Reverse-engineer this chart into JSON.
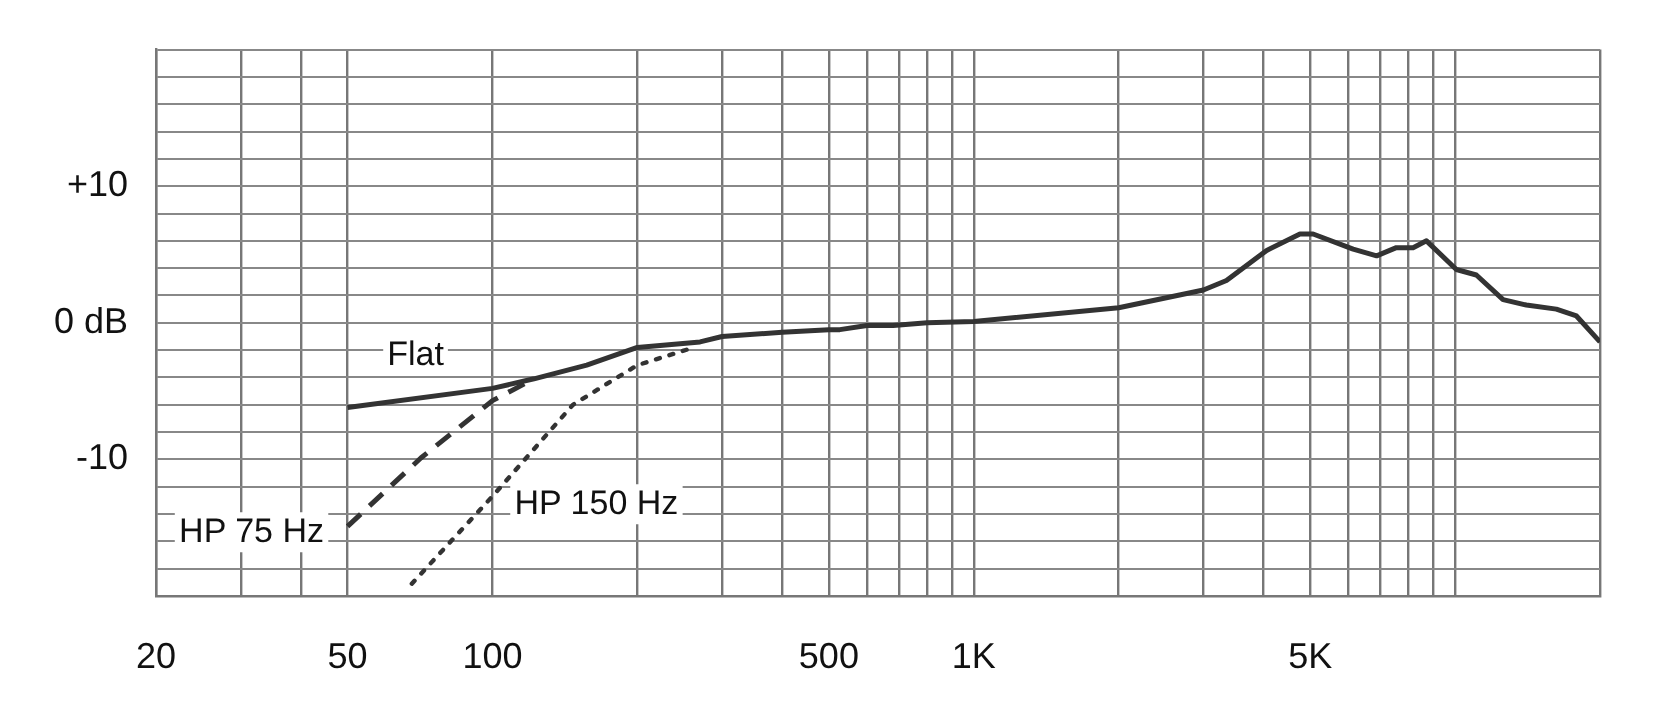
{
  "chart_data": {
    "type": "line",
    "log": "x",
    "grid": true,
    "legend": false,
    "marker": "none",
    "xlim": [
      20,
      20000
    ],
    "ylim": [
      -20,
      20
    ],
    "xticks": [
      20,
      {
        "value": 30,
        "label": null
      },
      {
        "value": 40,
        "label": null
      },
      50,
      100,
      {
        "value": 200,
        "label": null
      },
      {
        "value": 300,
        "label": null
      },
      {
        "value": 400,
        "label": null
      },
      500,
      {
        "value": 600,
        "label": null
      },
      {
        "value": 700,
        "label": null
      },
      {
        "value": 800,
        "label": null
      },
      {
        "value": 900,
        "label": null
      },
      {
        "value": 1000,
        "label": "1K"
      },
      {
        "value": 2000,
        "label": null
      },
      {
        "value": 3000,
        "label": null
      },
      {
        "value": 4000,
        "label": null
      },
      {
        "value": 5000,
        "label": "5K"
      },
      {
        "value": 6000,
        "label": null
      },
      {
        "value": 7000,
        "label": null
      },
      {
        "value": 8000,
        "label": null
      },
      {
        "value": 9000,
        "label": null
      },
      {
        "value": 10000,
        "label": null
      },
      {
        "value": 20000,
        "label": null
      }
    ],
    "yticks": [
      {
        "value": -20,
        "label": null
      },
      {
        "value": -18,
        "label": null
      },
      {
        "value": -16,
        "label": null
      },
      {
        "value": -14,
        "label": null
      },
      {
        "value": -12,
        "label": null
      },
      {
        "value": -10,
        "label": "-10"
      },
      {
        "value": -8,
        "label": null
      },
      {
        "value": -6,
        "label": null
      },
      {
        "value": -4,
        "label": null
      },
      {
        "value": -2,
        "label": null
      },
      {
        "value": 0,
        "label": "0 dB"
      },
      {
        "value": 2,
        "label": null
      },
      {
        "value": 4,
        "label": null
      },
      {
        "value": 6,
        "label": null
      },
      {
        "value": 8,
        "label": null
      },
      {
        "value": 10,
        "label": "+10"
      },
      {
        "value": 12,
        "label": null
      },
      {
        "value": 14,
        "label": null
      },
      {
        "value": 16,
        "label": null
      },
      {
        "value": 18,
        "label": null
      },
      {
        "value": 20,
        "label": null
      }
    ],
    "series": [
      {
        "name": "Flat",
        "line_style": "solid",
        "color": "#333333",
        "x": [
          50,
          100,
          122,
          157,
          200,
          270,
          300,
          400,
          500,
          527,
          600,
          680,
          800,
          1000,
          2000,
          3000,
          3350,
          4060,
          4760,
          5070,
          6140,
          6870,
          7550,
          8180,
          8720,
          10060,
          11070,
          12580,
          14060,
          16230,
          17870,
          20000
        ],
        "values": [
          -6.2,
          -4.8,
          -4.1,
          -3.1,
          -1.8,
          -1.4,
          -1.0,
          -0.7,
          -0.5,
          -0.5,
          -0.2,
          -0.2,
          0,
          0.1,
          1.1,
          2.4,
          3.1,
          5.3,
          6.5,
          6.5,
          5.4,
          4.9,
          5.5,
          5.5,
          6.0,
          3.9,
          3.5,
          1.7,
          1.3,
          1.0,
          0.5,
          -1.4
        ]
      },
      {
        "name": "HP 75 Hz",
        "line_style": "dashed",
        "color": "#333333",
        "x": [
          50,
          71,
          100,
          122
        ],
        "values": [
          -14.9,
          -9.9,
          -5.7,
          -4.1
        ]
      },
      {
        "name": "HP 150 Hz",
        "line_style": "dotted",
        "color": "#333333",
        "x": [
          68,
          100,
          147,
          200,
          257
        ],
        "values": [
          -19.1,
          -12.7,
          -6.0,
          -3.1,
          -1.9
        ]
      }
    ]
  }
}
